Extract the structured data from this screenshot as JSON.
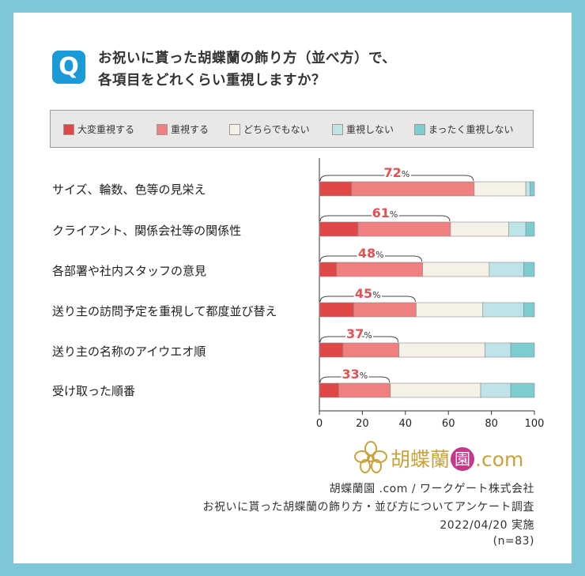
{
  "question": {
    "badge": "Q",
    "line1": "お祝いに貰った胡蝶蘭の飾り方（並べ方）で、",
    "line2": "各項目をどれくらい重視しますか？"
  },
  "colors": {
    "background": "#7dc7d9",
    "badge": "#1a9bd7",
    "highlight_text": "#e05252",
    "logo": "#c8a23a"
  },
  "chart_data": {
    "type": "bar",
    "orientation": "horizontal",
    "stacked": true,
    "xlim": [
      0,
      100
    ],
    "x_ticks": [
      "0",
      "20",
      "40",
      "60",
      "80",
      "100"
    ],
    "categories": [
      "サイズ、輪数、色等の見栄え",
      "クライアント、関係会社等の関係性",
      "各部署や社内スタッフの意見",
      "送り主の訪問予定を重視して都度並び替え",
      "送り主の名称のアイウエオ順",
      "受け取った順番"
    ],
    "series": [
      {
        "name": "大変重視する",
        "color": "#e04848",
        "values": [
          15,
          18,
          8,
          16,
          11,
          9
        ]
      },
      {
        "name": "重視する",
        "color": "#f08080",
        "values": [
          57,
          43,
          40,
          29,
          26,
          24
        ]
      },
      {
        "name": "どちらでもない",
        "color": "#f6f1e6",
        "values": [
          24,
          27,
          31,
          31,
          40,
          42
        ]
      },
      {
        "name": "重視しない",
        "color": "#bfe4e8",
        "values": [
          2,
          8,
          16,
          19,
          12,
          14
        ]
      },
      {
        "name": "まったく重視しない",
        "color": "#7ccdd0",
        "values": [
          2,
          4,
          5,
          5,
          11,
          11
        ]
      }
    ],
    "highlight_labels": [
      "72",
      "61",
      "48",
      "45",
      "37",
      "33"
    ],
    "highlight_unit": "%"
  },
  "logo": {
    "text": "胡蝶蘭",
    "seal": "園",
    "suffix": ".com"
  },
  "source": {
    "line1": "胡蝶蘭園 .com / ワークゲート株式会社",
    "line2": "お祝いに貰った胡蝶蘭の飾り方・並び方についてアンケート調査",
    "line3": "2022/04/20 実施",
    "line4": "(n=83)"
  }
}
